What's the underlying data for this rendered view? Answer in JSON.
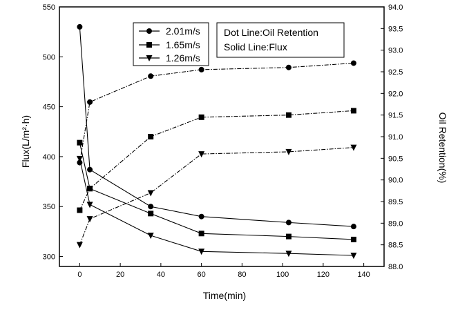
{
  "chart_data": {
    "type": "line",
    "title": "",
    "xlabel": "Time(min)",
    "ylabel_left": "Flux(L/m²·h)",
    "ylabel_right": "Oil Retention(%)",
    "xlim": [
      -10,
      150
    ],
    "ylim_left": [
      290,
      550
    ],
    "ylim_right": [
      88.0,
      94.0
    ],
    "x_ticks": [
      "0",
      "20",
      "40",
      "60",
      "80",
      "100",
      "120",
      "140"
    ],
    "y_left_ticks": [
      "300",
      "350",
      "400",
      "450",
      "500",
      "550"
    ],
    "y_right_ticks": [
      "88.0",
      "88.5",
      "89.0",
      "89.5",
      "90.0",
      "90.5",
      "91.0",
      "91.5",
      "92.0",
      "92.5",
      "93.0",
      "93.5",
      "94.0"
    ],
    "grid": false,
    "legend": {
      "placement": "top-center",
      "entries": [
        "2.01m/s",
        "1.65m/s",
        "1.26m/s"
      ]
    },
    "note": {
      "placement": "top-right",
      "lines": [
        "Dot Line:Oil Retention",
        "Solid Line:Flux"
      ]
    },
    "flux_series": [
      {
        "name": "2.01m/s",
        "marker": "circle",
        "x": [
          0,
          5,
          35,
          60,
          103,
          135
        ],
        "y": [
          530,
          387,
          350,
          340,
          334,
          330
        ]
      },
      {
        "name": "1.65m/s",
        "marker": "square",
        "x": [
          0,
          5,
          35,
          60,
          103,
          135
        ],
        "y": [
          414,
          368,
          343,
          323,
          320,
          317
        ]
      },
      {
        "name": "1.26m/s",
        "marker": "triangle-down",
        "x": [
          0,
          5,
          35,
          60,
          103,
          135
        ],
        "y": [
          398,
          352,
          321,
          305,
          303,
          301
        ]
      }
    ],
    "retention_series": [
      {
        "name": "2.01m/s",
        "marker": "circle",
        "x": [
          0,
          5,
          35,
          60,
          103,
          135
        ],
        "y": [
          90.4,
          91.8,
          92.4,
          92.55,
          92.6,
          92.7
        ]
      },
      {
        "name": "1.65m/s",
        "marker": "square",
        "x": [
          0,
          5,
          35,
          60,
          103,
          135
        ],
        "y": [
          89.3,
          89.8,
          91.0,
          91.45,
          91.5,
          91.6
        ]
      },
      {
        "name": "1.26m/s",
        "marker": "triangle-down",
        "x": [
          0,
          5,
          35,
          60,
          103,
          135
        ],
        "y": [
          88.5,
          89.1,
          89.7,
          90.6,
          90.65,
          90.75
        ]
      }
    ]
  }
}
